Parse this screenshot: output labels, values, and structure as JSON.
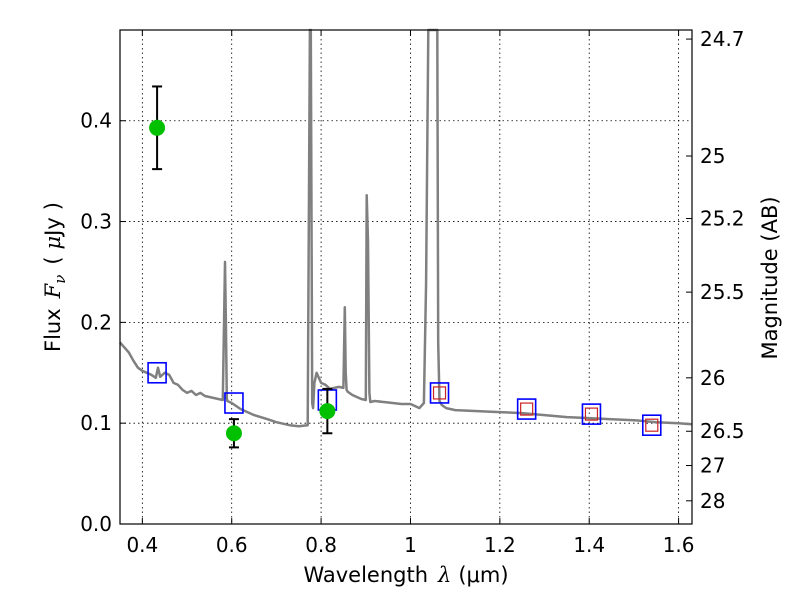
{
  "chart_data": {
    "type": "scatter",
    "title": "",
    "xlabel": "Wavelength",
    "xlabel_symbol": "λ",
    "xlabel_unit": "(μm)",
    "ylabel": "Flux",
    "ylabel_symbol": "F",
    "ylabel_subscript": "ν",
    "ylabel_unit_open": "(",
    "ylabel_unit_mu": "μ",
    "ylabel_unit_rest": "Jy",
    "ylabel_unit_close": ")",
    "y2label": "Magnitude (AB)",
    "xlim": [
      0.35,
      1.63
    ],
    "ylim": [
      0.0,
      0.49
    ],
    "grid": true,
    "grid_style": "dotted",
    "x_ticks": [
      {
        "value": 0.4,
        "label": "0.4"
      },
      {
        "value": 0.6,
        "label": "0.6"
      },
      {
        "value": 0.8,
        "label": "0.8"
      },
      {
        "value": 1.0,
        "label": "1"
      },
      {
        "value": 1.2,
        "label": "1.2"
      },
      {
        "value": 1.4,
        "label": "1.4"
      },
      {
        "value": 1.6,
        "label": "1.6"
      }
    ],
    "y_ticks": [
      {
        "value": 0.0,
        "label": "0.0"
      },
      {
        "value": 0.1,
        "label": "0.1"
      },
      {
        "value": 0.2,
        "label": "0.2"
      },
      {
        "value": 0.3,
        "label": "0.3"
      },
      {
        "value": 0.4,
        "label": "0.4"
      }
    ],
    "y2_ticks": [
      {
        "flux": 0.481,
        "label": "24.7"
      },
      {
        "flux": 0.365,
        "label": "25"
      },
      {
        "flux": 0.303,
        "label": "25.2"
      },
      {
        "flux": 0.23,
        "label": "25.5"
      },
      {
        "flux": 0.145,
        "label": "26"
      },
      {
        "flux": 0.092,
        "label": "26.5"
      },
      {
        "flux": 0.058,
        "label": "27"
      },
      {
        "flux": 0.023,
        "label": "28"
      }
    ],
    "colors": {
      "model": "#808080",
      "observed": "#00c000",
      "model_phot": "#0000ff",
      "model_phot_inner": "#cc2222",
      "errorbar": "#000000"
    },
    "model_spectrum": {
      "x": [
        0.35,
        0.36,
        0.37,
        0.38,
        0.39,
        0.4,
        0.41,
        0.42,
        0.43,
        0.435,
        0.44,
        0.45,
        0.46,
        0.47,
        0.48,
        0.49,
        0.5,
        0.51,
        0.52,
        0.53,
        0.54,
        0.55,
        0.56,
        0.57,
        0.58,
        0.585,
        0.587,
        0.589,
        0.59,
        0.6,
        0.62,
        0.65,
        0.68,
        0.7,
        0.73,
        0.75,
        0.77,
        0.775,
        0.777,
        0.78,
        0.782,
        0.785,
        0.79,
        0.8,
        0.81,
        0.82,
        0.83,
        0.84,
        0.85,
        0.853,
        0.855,
        0.857,
        0.86,
        0.87,
        0.88,
        0.89,
        0.9,
        0.902,
        0.905,
        0.908,
        0.91,
        0.92,
        0.94,
        0.96,
        0.98,
        1.0,
        1.01,
        1.02,
        1.03,
        1.035,
        1.04,
        1.045,
        1.05,
        1.06,
        1.062,
        1.065,
        1.07,
        1.08,
        1.1,
        1.15,
        1.2,
        1.25,
        1.3,
        1.35,
        1.4,
        1.45,
        1.5,
        1.55,
        1.6,
        1.63
      ],
      "y": [
        0.18,
        0.175,
        0.17,
        0.162,
        0.155,
        0.152,
        0.15,
        0.148,
        0.145,
        0.155,
        0.146,
        0.15,
        0.148,
        0.14,
        0.138,
        0.133,
        0.13,
        0.132,
        0.128,
        0.13,
        0.127,
        0.126,
        0.125,
        0.124,
        0.123,
        0.26,
        0.2,
        0.125,
        0.122,
        0.12,
        0.114,
        0.108,
        0.104,
        0.101,
        0.098,
        0.097,
        0.098,
        0.49,
        0.49,
        0.12,
        0.115,
        0.14,
        0.15,
        0.14,
        0.138,
        0.134,
        0.135,
        0.136,
        0.135,
        0.215,
        0.15,
        0.133,
        0.131,
        0.128,
        0.126,
        0.124,
        0.123,
        0.326,
        0.28,
        0.13,
        0.121,
        0.122,
        0.121,
        0.12,
        0.119,
        0.119,
        0.117,
        0.115,
        0.12,
        0.24,
        0.49,
        0.49,
        0.49,
        0.49,
        0.18,
        0.122,
        0.118,
        0.115,
        0.113,
        0.112,
        0.111,
        0.11,
        0.108,
        0.106,
        0.105,
        0.104,
        0.103,
        0.101,
        0.1,
        0.099
      ]
    },
    "observed_points": [
      {
        "x": 0.433,
        "y": 0.393,
        "yerr": 0.041
      },
      {
        "x": 0.605,
        "y": 0.09,
        "yerr": 0.014
      },
      {
        "x": 0.814,
        "y": 0.112,
        "yerr": 0.022
      }
    ],
    "model_photometry": {
      "x": [
        0.433,
        0.605,
        0.814,
        1.065,
        1.26,
        1.405,
        1.54
      ],
      "y": [
        0.15,
        0.12,
        0.123,
        0.13,
        0.114,
        0.109,
        0.098
      ]
    }
  }
}
